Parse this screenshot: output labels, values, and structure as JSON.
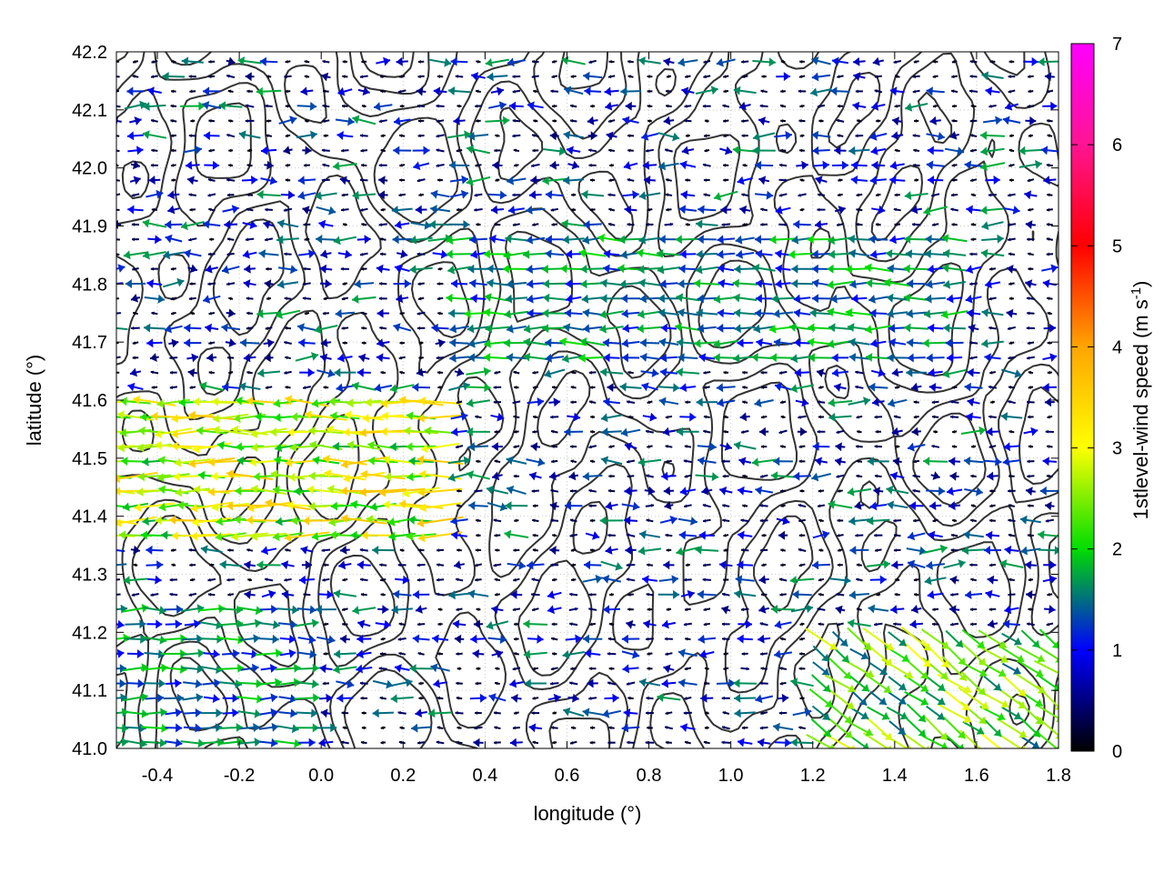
{
  "chart_data": {
    "type": "vector-field-contour",
    "xlabel": "longitude (°)",
    "ylabel": "latitude (°)",
    "xlim": [
      -0.5,
      1.8
    ],
    "ylim": [
      41.0,
      42.2
    ],
    "xticks": [
      "-0.4",
      "-0.2",
      "0.0",
      "0.2",
      "0.4",
      "0.6",
      "0.8",
      "1.0",
      "1.2",
      "1.4",
      "1.6",
      "1.8"
    ],
    "yticks": [
      "41.0",
      "41.1",
      "41.2",
      "41.3",
      "41.4",
      "41.5",
      "41.6",
      "41.7",
      "41.8",
      "41.9",
      "42.0",
      "42.1",
      "42.2"
    ],
    "grid": true,
    "colorbar": {
      "label": "1stlevel-wind speed (m s-1)",
      "range": [
        0,
        7
      ],
      "ticks": [
        "0",
        "1",
        "2",
        "3",
        "4",
        "5",
        "6",
        "7"
      ],
      "colors": [
        "#000000",
        "#0000ff",
        "#00dd00",
        "#ffff00",
        "#ffa500",
        "#ff0000",
        "#ff00ff"
      ]
    },
    "vector_regions": [
      {
        "lon": [
          -0.5,
          0.3
        ],
        "lat": [
          41.35,
          41.6
        ],
        "speed": 3.2,
        "direction": "westward"
      },
      {
        "lon": [
          0.3,
          1.55
        ],
        "lat": [
          41.65,
          41.9
        ],
        "speed": 1.8,
        "direction": "westward"
      },
      {
        "lon": [
          1.2,
          1.8
        ],
        "lat": [
          41.0,
          41.2
        ],
        "speed": 2.6,
        "direction": "south-eastward"
      },
      {
        "lon": [
          -0.5,
          0.0
        ],
        "lat": [
          41.0,
          41.25
        ],
        "speed": 1.8,
        "direction": "eastward"
      },
      {
        "lon": [
          0.4,
          1.8
        ],
        "lat": [
          41.2,
          42.2
        ],
        "speed": 0.4,
        "direction": "variable"
      }
    ]
  }
}
